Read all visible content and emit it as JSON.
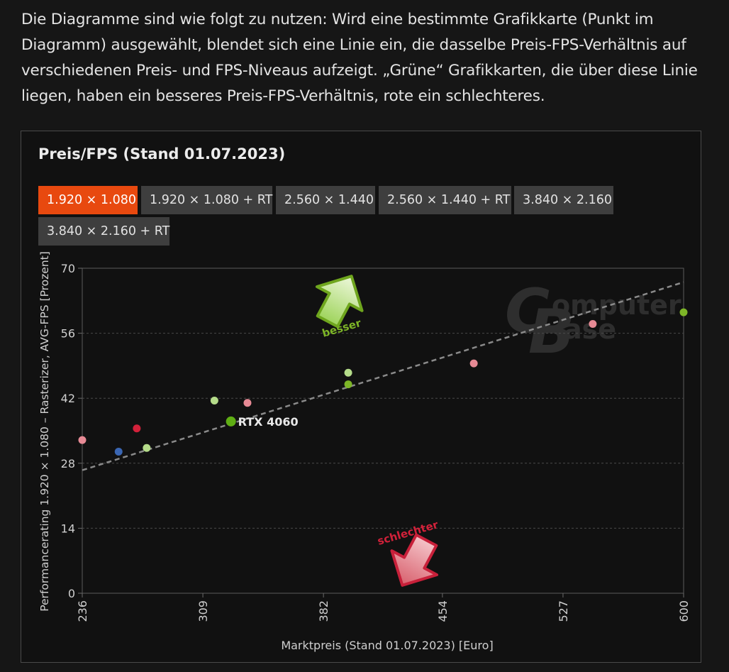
{
  "intro_text": "Die Diagramme sind wie folgt zu nutzen: Wird eine bestimmte Grafikkarte (Punkt im Diagramm) ausgewählt, blendet sich eine Linie ein, die dasselbe Preis-FPS-Verhältnis auf verschiedenen Preis- und FPS-Niveaus aufzeigt. „Grüne“ Grafikkarten, die über diese Linie liegen, haben ein besseres Preis-FPS-Verhältnis, rote ein schlechteres.",
  "tabs": [
    {
      "label": "1.920 × 1.080",
      "active": true
    },
    {
      "label": "1.920 × 1.080 + RT",
      "active": false
    },
    {
      "label": "2.560 × 1.440",
      "active": false
    },
    {
      "label": "2.560 × 1.440 + RT",
      "active": false
    },
    {
      "label": "3.840 × 2.160",
      "active": false
    },
    {
      "label": "3.840 × 2.160 + RT",
      "active": false
    }
  ],
  "watermark": {
    "line1": "omputer",
    "line2": "ase",
    "logo_letters": "CB"
  },
  "colors": {
    "accent": "#e8490f",
    "better_green": "#7db527",
    "worse_red": "#d2213a",
    "light_green": "#b5dc8a",
    "pink": "#e78a95",
    "blue": "#3a66b3",
    "selected_green": "#5fae14"
  },
  "chart_data": {
    "type": "scatter",
    "title": "Preis/FPS (Stand 01.07.2023)",
    "xlabel": "Marktpreis (Stand 01.07.2023) [Euro]",
    "ylabel": "Performancerating 1.920 × 1.080 – Rasterizer, AVG-FPS [Prozent]",
    "xlim": [
      236,
      600
    ],
    "ylim": [
      0,
      70
    ],
    "x_ticks": [
      236,
      309,
      382,
      454,
      527,
      600
    ],
    "y_ticks": [
      0,
      14,
      28,
      42,
      56,
      70
    ],
    "grid": true,
    "points": [
      {
        "x": 236,
        "y": 33.0,
        "color": "#e78a95"
      },
      {
        "x": 258,
        "y": 30.5,
        "color": "#3a66b3"
      },
      {
        "x": 269,
        "y": 35.5,
        "color": "#d2213a"
      },
      {
        "x": 275,
        "y": 31.3,
        "color": "#b5dc8a"
      },
      {
        "x": 316,
        "y": 41.5,
        "color": "#b5dc8a"
      },
      {
        "x": 326,
        "y": 37.0,
        "color": "#5fae14",
        "selected": true,
        "label": "RTX 4060"
      },
      {
        "x": 336,
        "y": 41.0,
        "color": "#e78a95"
      },
      {
        "x": 397,
        "y": 47.5,
        "color": "#b5dc8a"
      },
      {
        "x": 397,
        "y": 45.0,
        "color": "#7db527"
      },
      {
        "x": 473,
        "y": 49.5,
        "color": "#e78a95"
      },
      {
        "x": 545,
        "y": 58.0,
        "color": "#e78a95"
      },
      {
        "x": 600,
        "y": 60.5,
        "color": "#7db527"
      }
    ],
    "reference_line": {
      "from": [
        236,
        26.5
      ],
      "to": [
        600,
        67.0
      ]
    },
    "annotations": {
      "better": "besser",
      "worse": "schlechter"
    }
  }
}
